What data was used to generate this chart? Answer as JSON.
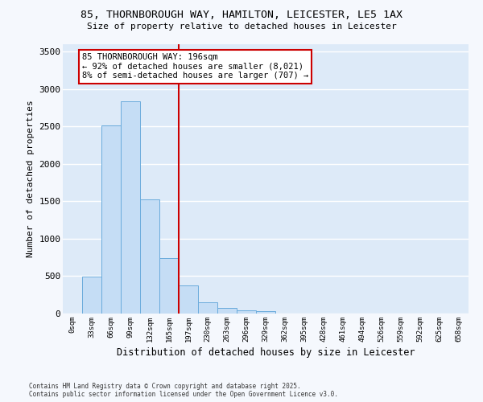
{
  "title_line1": "85, THORNBOROUGH WAY, HAMILTON, LEICESTER, LE5 1AX",
  "title_line2": "Size of property relative to detached houses in Leicester",
  "xlabel": "Distribution of detached houses by size in Leicester",
  "ylabel": "Number of detached properties",
  "bar_labels": [
    "0sqm",
    "33sqm",
    "66sqm",
    "99sqm",
    "132sqm",
    "165sqm",
    "197sqm",
    "230sqm",
    "263sqm",
    "296sqm",
    "329sqm",
    "362sqm",
    "395sqm",
    "428sqm",
    "461sqm",
    "494sqm",
    "526sqm",
    "559sqm",
    "592sqm",
    "625sqm",
    "658sqm"
  ],
  "bar_values": [
    5,
    490,
    2510,
    2840,
    1530,
    740,
    380,
    155,
    70,
    45,
    35,
    0,
    0,
    0,
    0,
    0,
    0,
    0,
    0,
    0,
    0
  ],
  "bar_color": "#c5ddf5",
  "bar_edge_color": "#6aabdc",
  "vline_x_index": 5.5,
  "vline_color": "#cc0000",
  "annotation_text": "85 THORNBOROUGH WAY: 196sqm\n← 92% of detached houses are smaller (8,021)\n8% of semi-detached houses are larger (707) →",
  "annotation_box_facecolor": "#ffffff",
  "annotation_box_edgecolor": "#cc0000",
  "ylim_max": 3600,
  "yticks": [
    0,
    500,
    1000,
    1500,
    2000,
    2500,
    3000,
    3500
  ],
  "plot_bg_color": "#ddeaf8",
  "fig_bg_color": "#f5f8fd",
  "grid_color": "#ffffff",
  "footer_line1": "Contains HM Land Registry data © Crown copyright and database right 2025.",
  "footer_line2": "Contains public sector information licensed under the Open Government Licence v3.0."
}
